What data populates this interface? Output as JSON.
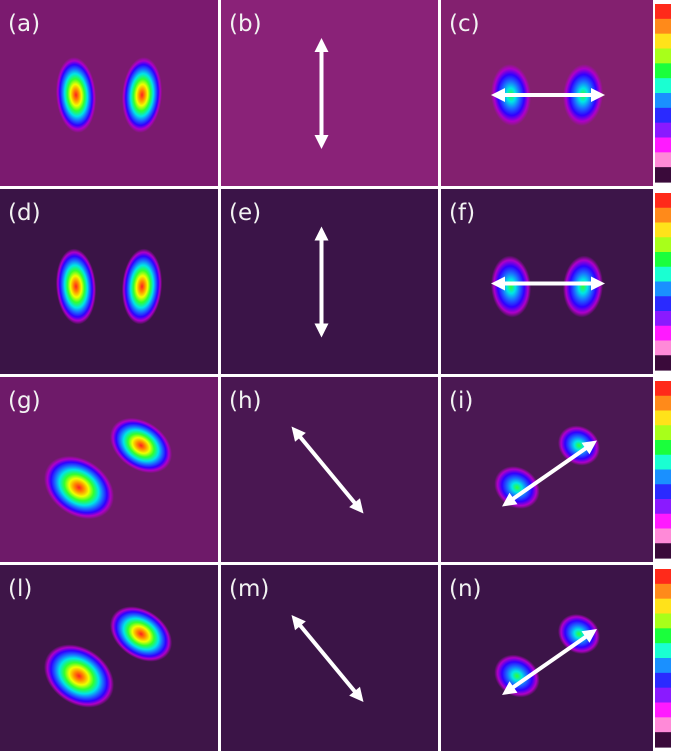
{
  "figure": {
    "rows": [
      {
        "panels": [
          {
            "label": "(a)",
            "type": "two-lobes",
            "orientation": "vertical",
            "background": "#7b1a6f"
          },
          {
            "label": "(b)",
            "type": "polarization-arrow",
            "orientation": "vertical",
            "background": "#8a2278"
          },
          {
            "label": "(c)",
            "type": "two-lobes-with-arrow",
            "orientation": "horizontal",
            "background": "#83206f"
          }
        ]
      },
      {
        "panels": [
          {
            "label": "(d)",
            "type": "two-lobes",
            "orientation": "vertical",
            "background": "#3a1446"
          },
          {
            "label": "(e)",
            "type": "polarization-arrow",
            "orientation": "vertical",
            "background": "#3b1448"
          },
          {
            "label": "(f)",
            "type": "two-lobes-with-arrow",
            "orientation": "horizontal",
            "background": "#3d1549"
          }
        ]
      },
      {
        "panels": [
          {
            "label": "(g)",
            "type": "two-lobes",
            "orientation": "diagonal",
            "background": "#6e1a69"
          },
          {
            "label": "(h)",
            "type": "polarization-arrow",
            "orientation": "diagonal",
            "background": "#4a1752"
          },
          {
            "label": "(i)",
            "type": "two-lobes-with-arrow",
            "orientation": "diagonal",
            "background": "#4b1853"
          }
        ]
      },
      {
        "panels": [
          {
            "label": "(l)",
            "type": "two-lobes",
            "orientation": "diagonal",
            "background": "#3e1548"
          },
          {
            "label": "(m)",
            "type": "polarization-arrow",
            "orientation": "diagonal",
            "background": "#3b1447"
          },
          {
            "label": "(n)",
            "type": "two-lobes-with-arrow",
            "orientation": "diagonal",
            "background": "#3c1448"
          }
        ]
      }
    ],
    "colorbar": {
      "colors": [
        "#ff2a1a",
        "#ff8a1a",
        "#ffe21a",
        "#a8ff1a",
        "#1aff3c",
        "#1affd2",
        "#1a90ff",
        "#2a2aff",
        "#8a1aff",
        "#ff1aff",
        "#ff8ad8",
        "#3a0a3a"
      ]
    }
  }
}
